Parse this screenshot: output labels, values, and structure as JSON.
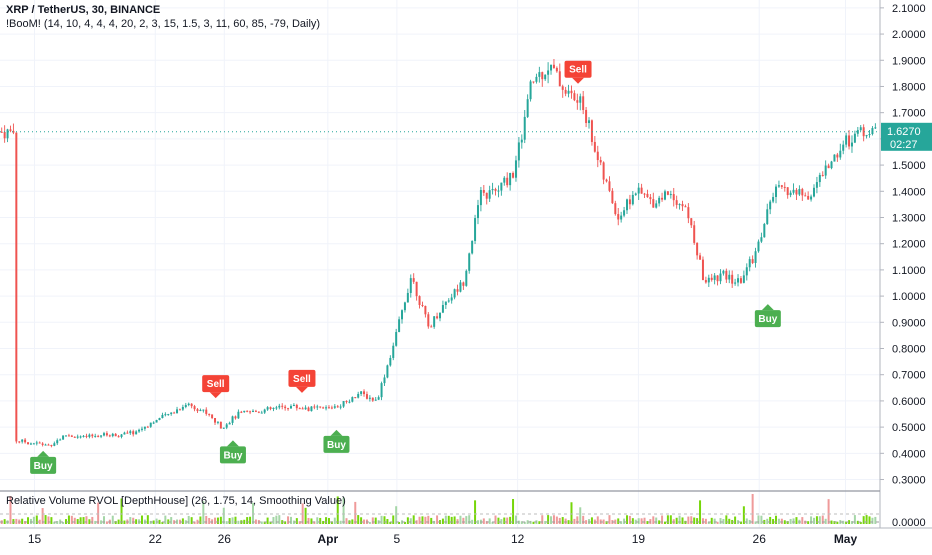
{
  "header": {
    "symbol_line": "XRP / TetherUS, 30, BINANCE",
    "indicator_line": "!BooM! (14, 10, 4, 4, 4, 20, 2, 3, 15, 1.5, 3, 11, 60, 85, -79, Daily)"
  },
  "volume_panel": {
    "title": "Relative Volume RVOL [DepthHouse] (26, 1.75, 14, Smoothing Value)",
    "axis_label": "0.0000"
  },
  "price_badge": {
    "price": "1.6270",
    "countdown": "02:27"
  },
  "colors": {
    "up": "#26a69a",
    "down": "#ef5350",
    "buy": "#4caf50",
    "sell": "#f44336",
    "volume": "#76d60a",
    "grid": "#f0f3fa",
    "axis_text": "#131722"
  },
  "chart_data": {
    "type": "candlestick",
    "y_axis": {
      "ticks": [
        "0.3000",
        "0.4000",
        "0.5000",
        "0.6000",
        "0.7000",
        "0.8000",
        "0.9000",
        "1.0000",
        "1.1000",
        "1.2000",
        "1.3000",
        "1.4000",
        "1.5000",
        "1.6000",
        "1.7000",
        "1.8000",
        "1.9000",
        "2.0000",
        "2.1000"
      ],
      "range": [
        0.26,
        2.13
      ]
    },
    "x_axis": {
      "ticks": [
        "15",
        "22",
        "26",
        "Apr",
        "5",
        "12",
        "19",
        "26",
        "May"
      ],
      "start_date": "2021-03-14",
      "end_date": "2021-05-02"
    },
    "price_path": [
      [
        "2021-03-14",
        0.45
      ],
      [
        "2021-03-15",
        0.44
      ],
      [
        "2021-03-16",
        0.43
      ],
      [
        "2021-03-17",
        0.47
      ],
      [
        "2021-03-18",
        0.46
      ],
      [
        "2021-03-19",
        0.47
      ],
      [
        "2021-03-20",
        0.47
      ],
      [
        "2021-03-21",
        0.48
      ],
      [
        "2021-03-22",
        0.52
      ],
      [
        "2021-03-23",
        0.55
      ],
      [
        "2021-03-24",
        0.59
      ],
      [
        "2021-03-25",
        0.56
      ],
      [
        "2021-03-26",
        0.5
      ],
      [
        "2021-03-27",
        0.55
      ],
      [
        "2021-03-28",
        0.56
      ],
      [
        "2021-03-29",
        0.57
      ],
      [
        "2021-03-30",
        0.58
      ],
      [
        "2021-03-31",
        0.57
      ],
      [
        "2021-04-01",
        0.57
      ],
      [
        "2021-04-02",
        0.59
      ],
      [
        "2021-04-03",
        0.63
      ],
      [
        "2021-04-04",
        0.6
      ],
      [
        "2021-04-05",
        0.82
      ],
      [
        "2021-04-06",
        1.08
      ],
      [
        "2021-04-07",
        0.88
      ],
      [
        "2021-04-08",
        0.98
      ],
      [
        "2021-04-09",
        1.05
      ],
      [
        "2021-04-10",
        1.38
      ],
      [
        "2021-04-11",
        1.4
      ],
      [
        "2021-04-12",
        1.48
      ],
      [
        "2021-04-13",
        1.82
      ],
      [
        "2021-04-14",
        1.88
      ],
      [
        "2021-04-15",
        1.78
      ],
      [
        "2021-04-16",
        1.72
      ],
      [
        "2021-04-17",
        1.48
      ],
      [
        "2021-04-18",
        1.3
      ],
      [
        "2021-04-19",
        1.4
      ],
      [
        "2021-04-20",
        1.36
      ],
      [
        "2021-04-21",
        1.4
      ],
      [
        "2021-04-22",
        1.32
      ],
      [
        "2021-04-23",
        1.05
      ],
      [
        "2021-04-24",
        1.08
      ],
      [
        "2021-04-25",
        1.05
      ],
      [
        "2021-04-26",
        1.17
      ],
      [
        "2021-04-27",
        1.4
      ],
      [
        "2021-04-28",
        1.4
      ],
      [
        "2021-04-29",
        1.38
      ],
      [
        "2021-04-30",
        1.48
      ],
      [
        "2021-05-01",
        1.58
      ],
      [
        "2021-05-02",
        1.627
      ]
    ],
    "signals": [
      {
        "label": "Buy",
        "date": "2021-03-15",
        "price": 0.44
      },
      {
        "label": "Sell",
        "date": "2021-03-25",
        "price": 0.58
      },
      {
        "label": "Buy",
        "date": "2021-03-26",
        "price": 0.48
      },
      {
        "label": "Sell",
        "date": "2021-03-30",
        "price": 0.6
      },
      {
        "label": "Buy",
        "date": "2021-04-01",
        "price": 0.52
      },
      {
        "label": "Sell",
        "date": "2021-04-15",
        "price": 1.78
      },
      {
        "label": "Buy",
        "date": "2021-04-26",
        "price": 1.0
      }
    ],
    "last_price": 1.627
  }
}
